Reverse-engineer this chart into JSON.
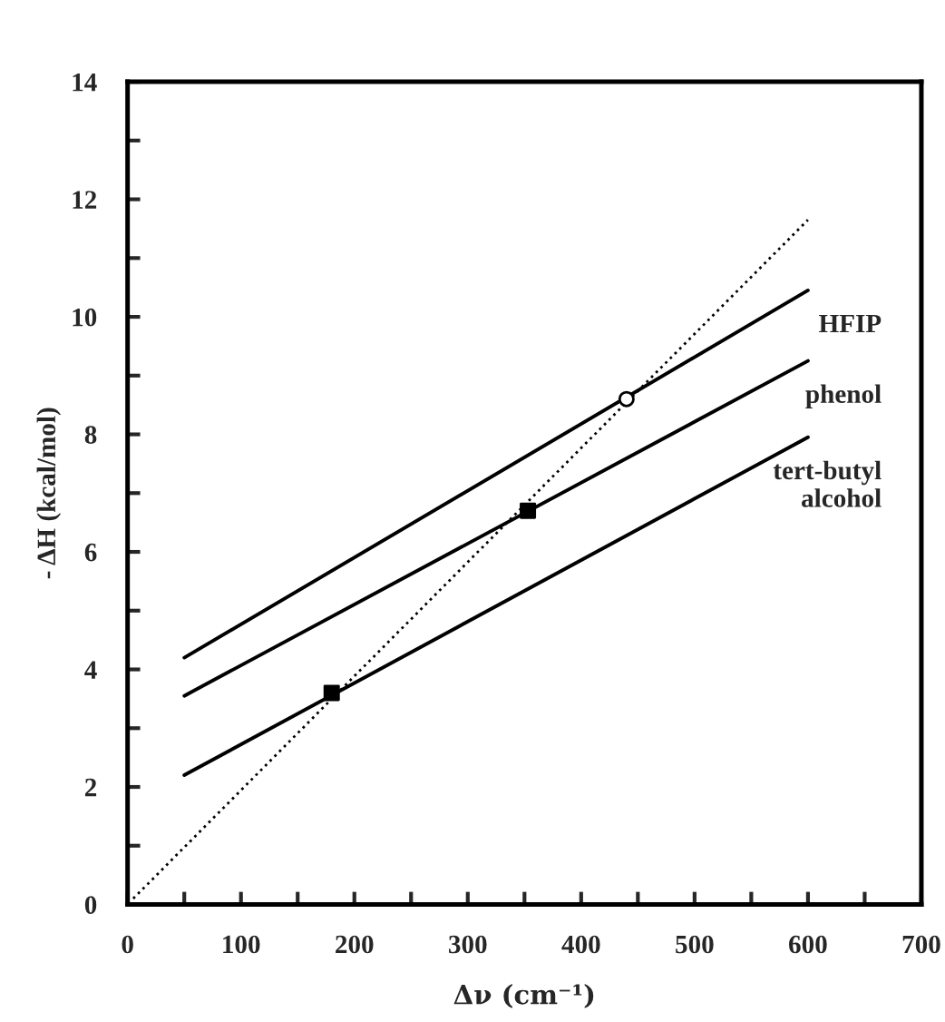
{
  "chart_data": {
    "type": "line",
    "xlabel": "Δν (cm⁻¹)",
    "ylabel": "- ΔH (kcal/mol)",
    "xlim": [
      0,
      700
    ],
    "ylim": [
      0,
      14
    ],
    "xticks": [
      0,
      {
        "value": 50,
        "label": null
      },
      100,
      {
        "value": 150,
        "label": null
      },
      200,
      {
        "value": 250,
        "label": null
      },
      300,
      {
        "value": 350,
        "label": null
      },
      400,
      {
        "value": 450,
        "label": null
      },
      500,
      {
        "value": 550,
        "label": null
      },
      600,
      {
        "value": 650,
        "label": null
      },
      700
    ],
    "yticks": [
      0,
      {
        "value": 1,
        "label": null
      },
      2,
      {
        "value": 3,
        "label": null
      },
      4,
      {
        "value": 5,
        "label": null
      },
      6,
      {
        "value": 7,
        "label": null
      },
      8,
      {
        "value": 9,
        "label": null
      },
      10,
      {
        "value": 11,
        "label": null
      },
      12,
      {
        "value": 13,
        "label": null
      },
      14
    ],
    "grid": false,
    "legend": false,
    "series": [
      {
        "name": "HFIP",
        "color": "#000000",
        "x": [
          50,
          600
        ],
        "values": [
          4.2,
          10.45
        ],
        "line_style": "solid",
        "marker": "none"
      },
      {
        "name": "phenol",
        "color": "#000000",
        "x": [
          50,
          600
        ],
        "values": [
          3.55,
          9.25
        ],
        "line_style": "solid",
        "marker": "none"
      },
      {
        "name": "tert-butyl\nalcohol",
        "color": "#000000",
        "x": [
          50,
          600
        ],
        "values": [
          2.2,
          7.95
        ],
        "line_style": "solid",
        "marker": "none"
      },
      {
        "color": "#000000",
        "x": [
          5,
          600
        ],
        "values": [
          0.1,
          11.65
        ],
        "line_style": "dotted",
        "marker": "none"
      },
      {
        "type": "scatter",
        "color": "#000000",
        "x": [
          440
        ],
        "values": [
          8.6
        ],
        "marker": "circle"
      },
      {
        "type": "scatter",
        "color": "#000000",
        "x": [
          180,
          353
        ],
        "values": [
          3.6,
          6.7
        ],
        "marker": "square"
      }
    ]
  }
}
